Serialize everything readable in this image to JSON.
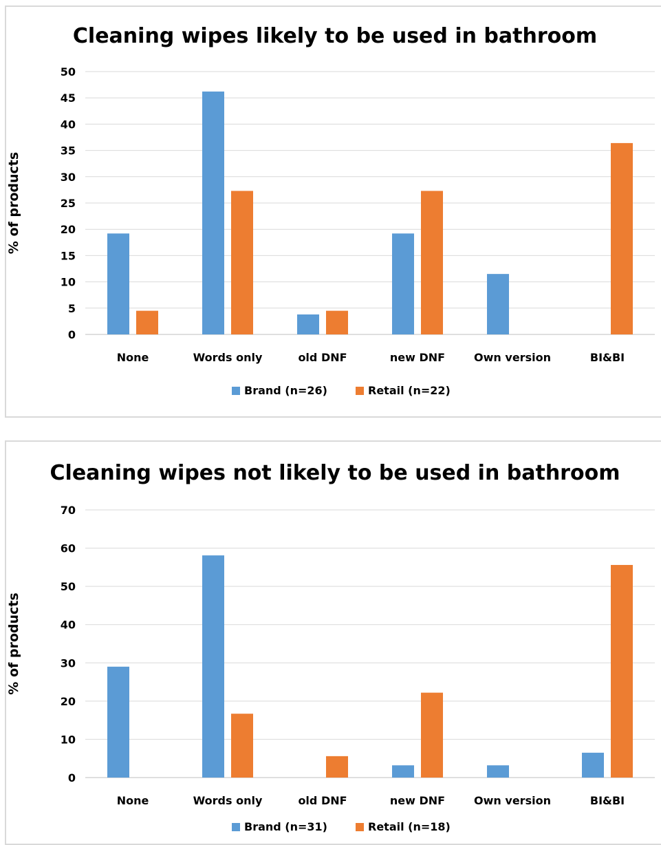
{
  "chart_data": [
    {
      "type": "bar",
      "title": "Cleaning wipes likely to be used in bathroom",
      "xlabel": "",
      "ylabel": "% of products",
      "ylim": [
        0,
        50
      ],
      "yticks": [
        0,
        5,
        10,
        15,
        20,
        25,
        30,
        35,
        40,
        45,
        50
      ],
      "grid": true,
      "legend_position": "bottom",
      "categories": [
        "None",
        "Words only",
        "old DNF",
        "new DNF",
        "Own version",
        "BI&BI"
      ],
      "series": [
        {
          "name": "Brand (n=26)",
          "color": "#5b9bd5",
          "values": [
            19.2,
            46.2,
            3.8,
            19.2,
            11.5,
            0
          ]
        },
        {
          "name": "Retail (n=22)",
          "color": "#ed7d31",
          "values": [
            4.5,
            27.3,
            4.5,
            27.3,
            0,
            36.4
          ]
        }
      ]
    },
    {
      "type": "bar",
      "title": "Cleaning wipes not likely to be used in bathroom",
      "xlabel": "",
      "ylabel": "% of products",
      "ylim": [
        0,
        70
      ],
      "yticks": [
        0,
        10,
        20,
        30,
        40,
        50,
        60,
        70
      ],
      "grid": true,
      "legend_position": "bottom",
      "categories": [
        "None",
        "Words only",
        "old DNF",
        "new DNF",
        "Own version",
        "BI&BI"
      ],
      "series": [
        {
          "name": "Brand (n=31)",
          "color": "#5b9bd5",
          "values": [
            29.0,
            58.1,
            0,
            3.2,
            3.2,
            6.5
          ]
        },
        {
          "name": "Retail (n=18)",
          "color": "#ed7d31",
          "values": [
            0,
            16.7,
            5.6,
            22.2,
            0,
            55.6
          ]
        }
      ]
    }
  ]
}
